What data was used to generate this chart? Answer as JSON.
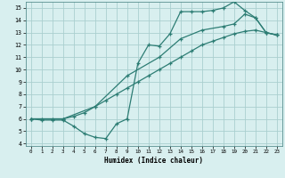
{
  "line2_x": [
    0,
    1,
    2,
    3,
    4,
    5,
    6,
    7,
    8,
    9,
    10,
    11,
    12,
    13,
    14,
    15,
    16,
    17,
    18,
    19,
    20,
    21,
    22,
    23
  ],
  "line2_y": [
    6.0,
    5.9,
    5.9,
    5.9,
    5.4,
    4.8,
    4.5,
    4.4,
    5.6,
    6.0,
    10.5,
    12.0,
    11.9,
    12.9,
    14.7,
    14.7,
    14.7,
    14.8,
    15.0,
    15.5,
    14.8,
    14.2,
    13.0,
    12.8
  ],
  "line1_x": [
    0,
    1,
    2,
    3,
    4,
    5,
    6,
    7,
    8,
    9,
    10,
    11,
    12,
    13,
    14,
    15,
    16,
    17,
    18,
    19,
    20,
    21,
    22,
    23
  ],
  "line1_y": [
    6.0,
    6.0,
    6.0,
    6.0,
    6.2,
    6.5,
    7.0,
    7.5,
    8.0,
    8.5,
    9.0,
    9.5,
    10.0,
    10.5,
    11.0,
    11.5,
    12.0,
    12.3,
    12.6,
    12.9,
    13.1,
    13.2,
    13.0,
    12.8
  ],
  "line3_x": [
    0,
    3,
    6,
    9,
    12,
    14,
    16,
    18,
    19,
    20,
    21,
    22,
    23
  ],
  "line3_y": [
    6.0,
    6.0,
    7.0,
    9.5,
    11.0,
    12.5,
    13.2,
    13.5,
    13.7,
    14.5,
    14.2,
    13.0,
    12.8
  ],
  "line_color": "#2d7d74",
  "bg_color": "#d8efef",
  "grid_color": "#aacfcf",
  "xlabel": "Humidex (Indice chaleur)",
  "xlim": [
    -0.5,
    23.5
  ],
  "ylim": [
    3.8,
    15.5
  ],
  "xticks": [
    0,
    1,
    2,
    3,
    4,
    5,
    6,
    7,
    8,
    9,
    10,
    11,
    12,
    13,
    14,
    15,
    16,
    17,
    18,
    19,
    20,
    21,
    22,
    23
  ],
  "yticks": [
    4,
    5,
    6,
    7,
    8,
    9,
    10,
    11,
    12,
    13,
    14,
    15
  ]
}
